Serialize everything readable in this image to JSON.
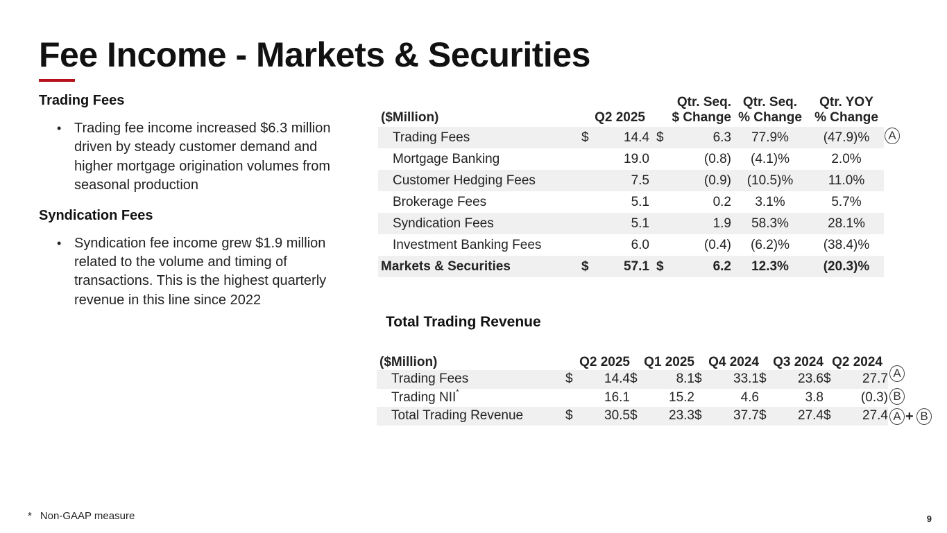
{
  "slide": {
    "title": "Fee Income - Markets & Securities",
    "page_number": "9",
    "accent_color": "#b5121b"
  },
  "commentary": {
    "sections": [
      {
        "heading": "Trading Fees",
        "bullet": "Trading fee income increased $6.3 million driven by steady customer demand and higher mortgage origination volumes from seasonal production"
      },
      {
        "heading": "Syndication Fees",
        "bullet": "Syndication fee income grew $1.9 million related to the volume and timing of transactions. This is the highest quarterly revenue in this line since 2022"
      }
    ]
  },
  "fee_table": {
    "headers": {
      "unit": "($Million)",
      "q2_2025": "Q2 2025",
      "seq_dollar_line1": "Qtr. Seq.",
      "seq_dollar_line2": "$ Change",
      "seq_pct_line1": "Qtr. Seq.",
      "seq_pct_line2": "% Change",
      "yoy_line1": "Qtr. YOY",
      "yoy_line2": "% Change"
    },
    "rows": [
      {
        "label": "Trading Fees",
        "cur1": "$",
        "value": "14.4",
        "cur2": "$",
        "seq_change": "6.3",
        "seq_pct": "77.9%",
        "yoy_pct": "(47.9)%"
      },
      {
        "label": "Mortgage Banking",
        "cur1": "",
        "value": "19.0",
        "cur2": "",
        "seq_change": "(0.8)",
        "seq_pct": "(4.1)%",
        "yoy_pct": "2.0%"
      },
      {
        "label": "Customer Hedging Fees",
        "cur1": "",
        "value": "7.5",
        "cur2": "",
        "seq_change": "(0.9)",
        "seq_pct": "(10.5)%",
        "yoy_pct": "11.0%"
      },
      {
        "label": "Brokerage Fees",
        "cur1": "",
        "value": "5.1",
        "cur2": "",
        "seq_change": "0.2",
        "seq_pct": "3.1%",
        "yoy_pct": "5.7%"
      },
      {
        "label": "Syndication Fees",
        "cur1": "",
        "value": "5.1",
        "cur2": "",
        "seq_change": "1.9",
        "seq_pct": "58.3%",
        "yoy_pct": "28.1%"
      },
      {
        "label": "Investment Banking Fees",
        "cur1": "",
        "value": "6.0",
        "cur2": "",
        "seq_change": "(0.4)",
        "seq_pct": "(6.2)%",
        "yoy_pct": "(38.4)%"
      }
    ],
    "total": {
      "label": "Markets & Securities",
      "cur1": "$",
      "value": "57.1",
      "cur2": "$",
      "seq_change": "6.2",
      "seq_pct": "12.3%",
      "yoy_pct": "(20.3)%"
    },
    "marker_a": "A"
  },
  "trading_table": {
    "title": "Total Trading Revenue",
    "headers": {
      "unit": "($Million)",
      "periods": [
        "Q2 2025",
        "Q1 2025",
        "Q4 2024",
        "Q3 2024",
        "Q2 2024"
      ]
    },
    "rows": [
      {
        "label": "Trading Fees",
        "label_sup": "",
        "currency": "$",
        "values": [
          "14.4",
          "8.1",
          "33.1",
          "23.6",
          "27.7"
        ]
      },
      {
        "label": "Trading NII",
        "label_sup": "*",
        "currency": "",
        "values": [
          "16.1",
          "15.2",
          "4.6",
          "3.8",
          "(0.3)"
        ]
      },
      {
        "label": "Total Trading Revenue",
        "label_sup": "",
        "currency": "$",
        "values": [
          "30.5",
          "23.3",
          "37.7",
          "27.4",
          "27.4"
        ]
      }
    ],
    "markers": {
      "a": "A",
      "b": "B",
      "plus": "+"
    }
  },
  "footnote": {
    "symbol": "*",
    "text": "Non-GAAP measure"
  }
}
